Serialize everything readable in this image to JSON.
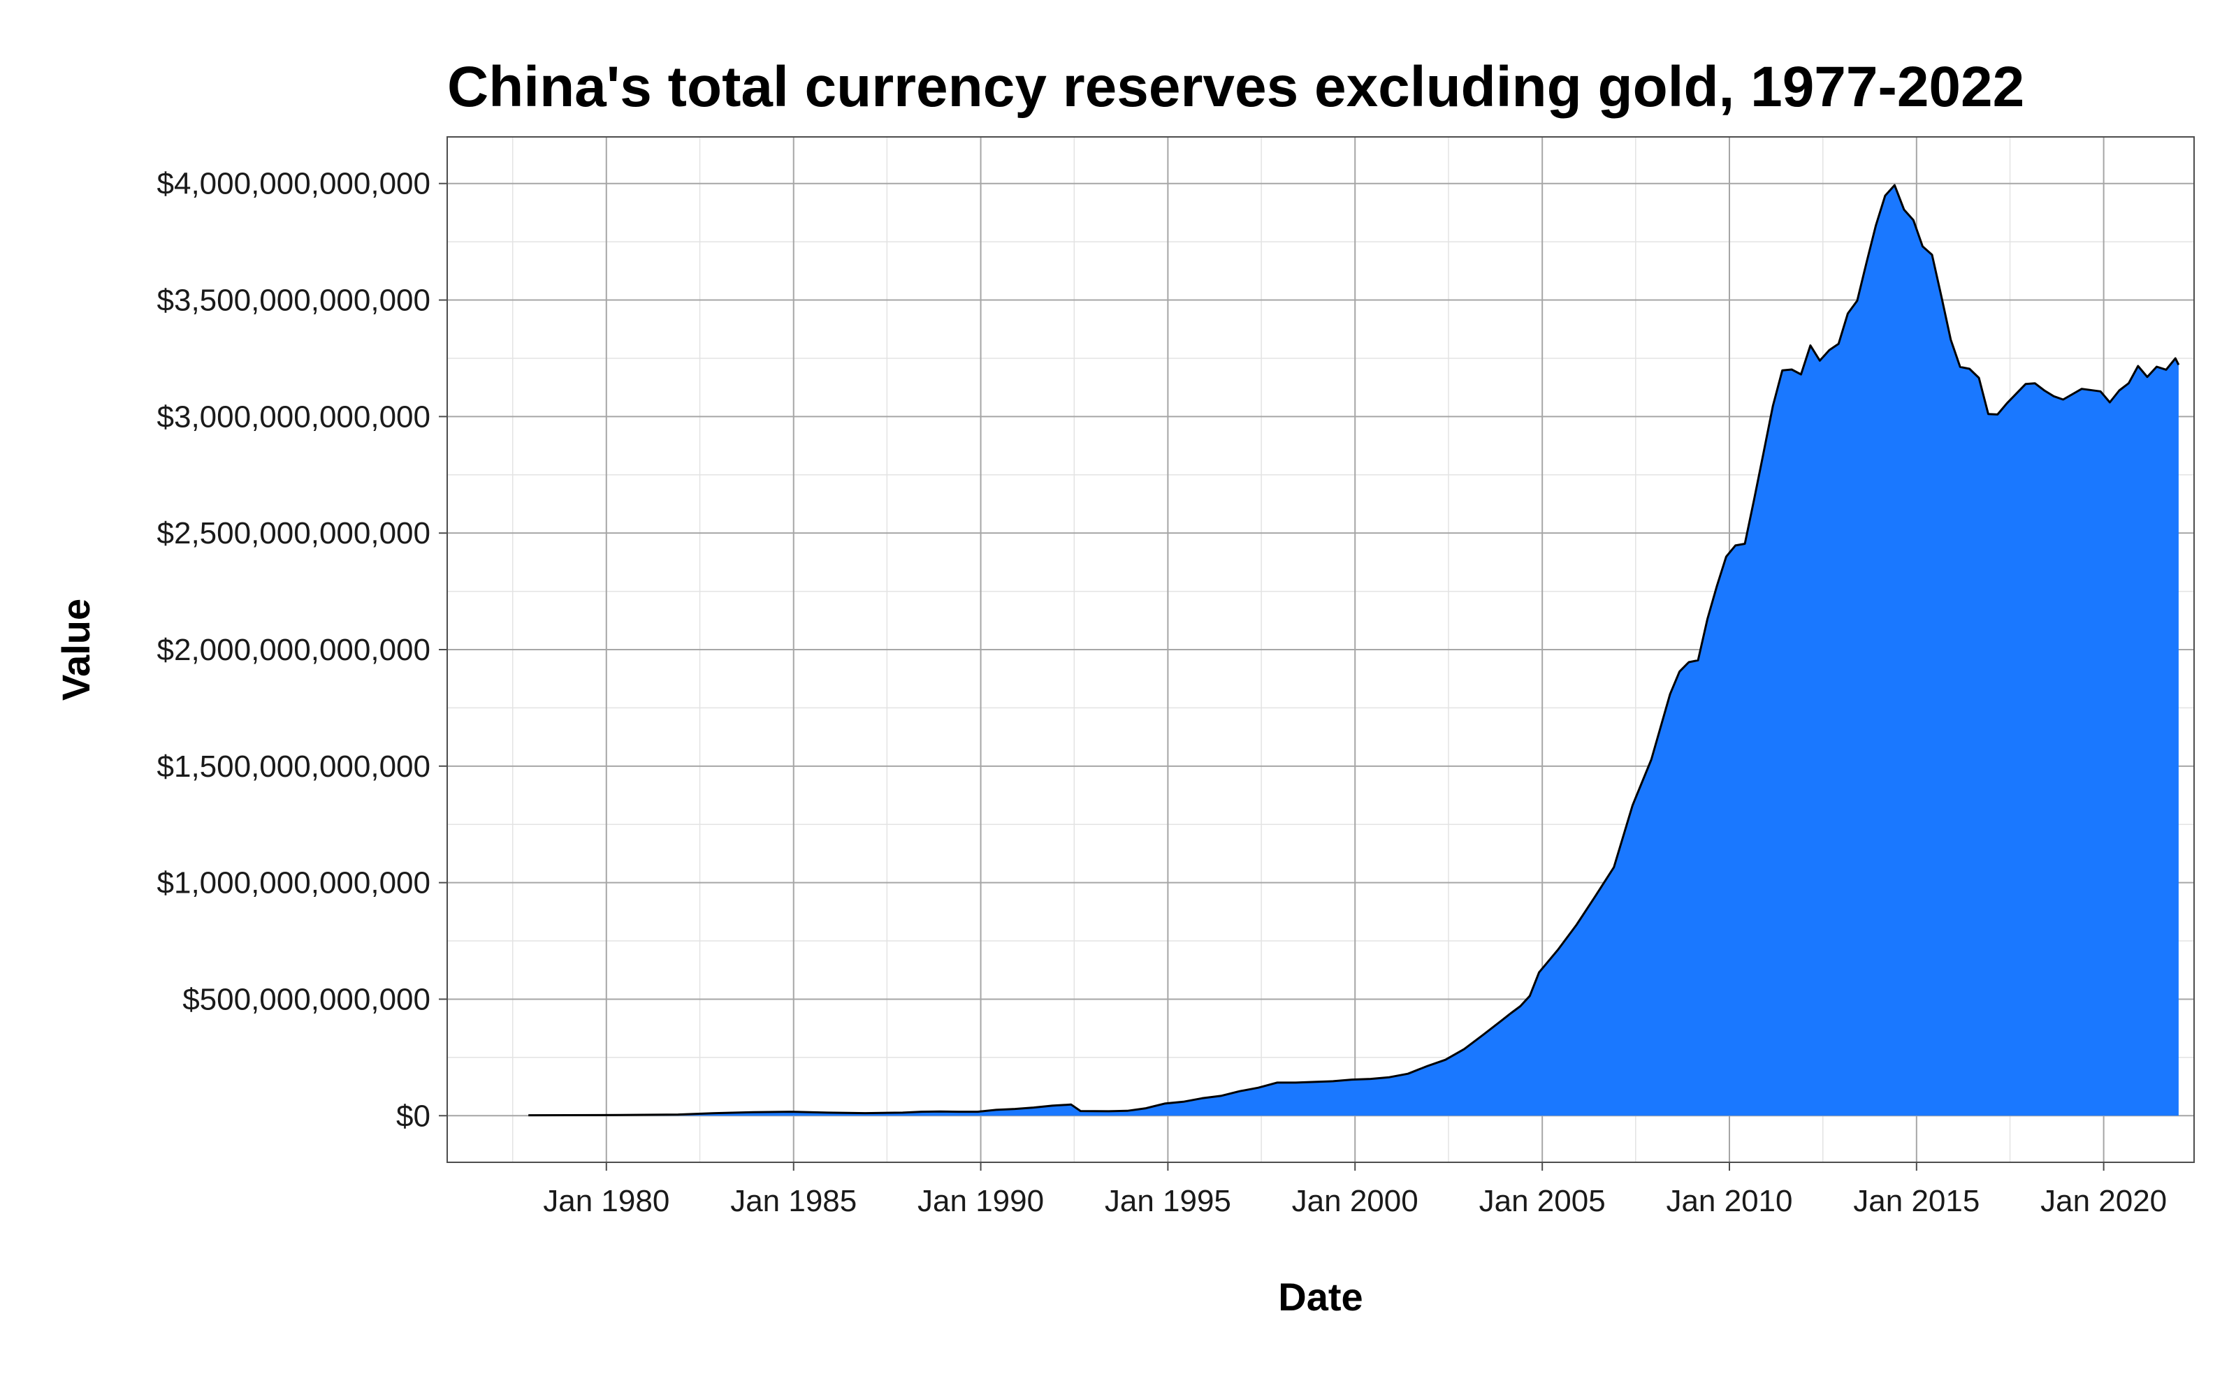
{
  "chart_data": {
    "type": "area",
    "title": "China's total currency reserves excluding gold, 1977-2022",
    "xlabel": "Date",
    "ylabel": "Value",
    "xlim": [
      "1975-10-01",
      "2022-06-01"
    ],
    "ylim": [
      -200000000000,
      4200000000000
    ],
    "x_ticks": [
      "1980-01-01",
      "1985-01-01",
      "1990-01-01",
      "1995-01-01",
      "2000-01-01",
      "2005-01-01",
      "2010-01-01",
      "2015-01-01",
      "2020-01-01"
    ],
    "x_tick_labels": [
      "Jan 1980",
      "Jan 1985",
      "Jan 1990",
      "Jan 1995",
      "Jan 2000",
      "Jan 2005",
      "Jan 2010",
      "Jan 2015",
      "Jan 2020"
    ],
    "y_ticks": [
      0,
      500000000000,
      1000000000000,
      1500000000000,
      2000000000000,
      2500000000000,
      3000000000000,
      3500000000000,
      4000000000000
    ],
    "y_tick_labels": [
      "$0",
      "$500,000,000,000",
      "$1,000,000,000,000",
      "$1,500,000,000,000",
      "$2,000,000,000,000",
      "$2,500,000,000,000",
      "$3,000,000,000,000",
      "$3,500,000,000,000",
      "$4,000,000,000,000"
    ],
    "grid": true,
    "fill_color": "#1a78ff",
    "line_color": "#000000",
    "series": [
      {
        "x": [
          "1977-12-01",
          "1979-12-01",
          "1981-12-01",
          "1982-12-01",
          "1983-12-01",
          "1984-12-01",
          "1985-12-01",
          "1986-12-01",
          "1987-12-01",
          "1988-06-01",
          "1988-12-01",
          "1989-06-01",
          "1989-12-01",
          "1990-06-01",
          "1990-12-01",
          "1991-06-01",
          "1991-12-01",
          "1992-06-01",
          "1992-09-01",
          "1993-06-01",
          "1993-12-01",
          "1994-06-01",
          "1994-12-01",
          "1995-06-01",
          "1995-12-01",
          "1996-06-01",
          "1996-12-01",
          "1997-06-01",
          "1997-12-01",
          "1998-06-01",
          "1998-12-01",
          "1999-06-01",
          "1999-12-01",
          "2000-06-01",
          "2000-12-01",
          "2001-06-01",
          "2001-12-01",
          "2002-06-01",
          "2002-12-01",
          "2003-06-01",
          "2003-12-01",
          "2004-03-01",
          "2004-06-01",
          "2004-09-01",
          "2004-12-01",
          "2005-06-01",
          "2005-12-01",
          "2006-06-01",
          "2006-12-01",
          "2007-06-01",
          "2007-12-01",
          "2008-06-01",
          "2008-09-01",
          "2008-12-01",
          "2009-03-01",
          "2009-06-01",
          "2009-09-01",
          "2009-12-01",
          "2010-03-01",
          "2010-06-01",
          "2010-09-01",
          "2010-12-01",
          "2011-03-01",
          "2011-06-01",
          "2011-09-01",
          "2011-12-01",
          "2012-03-01",
          "2012-06-01",
          "2012-09-01",
          "2012-12-01",
          "2013-03-01",
          "2013-06-01",
          "2013-09-01",
          "2013-12-01",
          "2014-03-01",
          "2014-06-01",
          "2014-09-01",
          "2014-12-01",
          "2015-03-01",
          "2015-06-01",
          "2015-09-01",
          "2015-12-01",
          "2016-03-01",
          "2016-06-01",
          "2016-09-01",
          "2016-12-01",
          "2017-03-01",
          "2017-06-01",
          "2017-12-01",
          "2018-03-01",
          "2018-06-01",
          "2018-09-01",
          "2018-12-01",
          "2019-06-01",
          "2019-12-01",
          "2020-03-01",
          "2020-06-01",
          "2020-09-01",
          "2020-12-01",
          "2021-03-01",
          "2021-06-01",
          "2021-09-01",
          "2021-12-01",
          "2022-01-01"
        ],
        "values": [
          2000000000,
          2500000000,
          5000000000,
          11000000000,
          15000000000,
          17000000000,
          13000000000,
          11000000000,
          13000000000,
          17000000000,
          18000000000,
          17000000000,
          17000000000,
          25000000000,
          29000000000,
          35000000000,
          43000000000,
          48000000000,
          20000000000,
          19000000000,
          21000000000,
          32000000000,
          52000000000,
          60000000000,
          75000000000,
          85000000000,
          105000000000,
          120000000000,
          142000000000,
          142000000000,
          145000000000,
          148000000000,
          155000000000,
          158000000000,
          165000000000,
          180000000000,
          212000000000,
          240000000000,
          286000000000,
          346000000000,
          408000000000,
          440000000000,
          470000000000,
          514000000000,
          615000000000,
          711000000000,
          819000000000,
          941000000000,
          1066000000000,
          1332000000000,
          1528000000000,
          1809000000000,
          1906000000000,
          1946000000000,
          1954000000000,
          2132000000000,
          2273000000000,
          2399000000000,
          2447000000000,
          2454000000000,
          2648000000000,
          2847000000000,
          3045000000000,
          3198000000000,
          3202000000000,
          3181000000000,
          3305000000000,
          3240000000000,
          3285000000000,
          3312000000000,
          3442000000000,
          3497000000000,
          3663000000000,
          3821000000000,
          3948000000000,
          3993000000000,
          3888000000000,
          3843000000000,
          3730000000000,
          3694000000000,
          3514000000000,
          3330000000000,
          3213000000000,
          3205000000000,
          3166000000000,
          3011000000000,
          3009000000000,
          3057000000000,
          3140000000000,
          3143000000000,
          3112000000000,
          3087000000000,
          3073000000000,
          3119000000000,
          3108000000000,
          3061000000000,
          3112000000000,
          3143000000000,
          3217000000000,
          3170000000000,
          3214000000000,
          3201000000000,
          3250000000000,
          3222000000000
        ]
      }
    ]
  }
}
